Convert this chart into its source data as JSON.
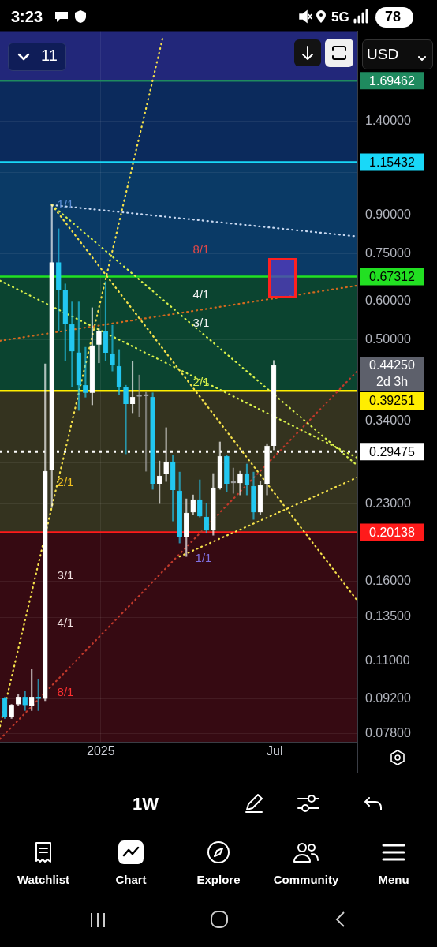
{
  "chart_data": {
    "type": "candlestick",
    "x": [
      "2024-09-23",
      "2024-09-30",
      "2024-10-07",
      "2024-10-14",
      "2024-10-21",
      "2024-10-28",
      "2024-11-04",
      "2024-11-11",
      "2024-11-18",
      "2024-11-25",
      "2024-12-02",
      "2024-12-09",
      "2024-12-16",
      "2024-12-23",
      "2024-12-30",
      "2025-01-06",
      "2025-01-13",
      "2025-01-20",
      "2025-01-27",
      "2025-02-03",
      "2025-02-10",
      "2025-02-17",
      "2025-02-24",
      "2025-03-03",
      "2025-03-10",
      "2025-03-17",
      "2025-03-24",
      "2025-03-31",
      "2025-04-07",
      "2025-04-14",
      "2025-04-21",
      "2025-04-28",
      "2025-05-05",
      "2025-05-12",
      "2025-05-19",
      "2025-05-26",
      "2025-06-02",
      "2025-06-09",
      "2025-06-16",
      "2025-06-23",
      "2025-06-30"
    ],
    "ohlc": [
      [
        0.0919,
        0.0925,
        0.0837,
        0.0844
      ],
      [
        0.0844,
        0.0895,
        0.0837,
        0.0892
      ],
      [
        0.0895,
        0.094,
        0.0889,
        0.0926
      ],
      [
        0.0926,
        0.0954,
        0.0869,
        0.0892
      ],
      [
        0.0889,
        0.1055,
        0.0869,
        0.0926
      ],
      [
        0.0926,
        0.1009,
        0.0869,
        0.0919
      ],
      [
        0.0919,
        0.446,
        0.091,
        0.2687
      ],
      [
        0.2708,
        0.943,
        0.2264,
        0.719
      ],
      [
        0.719,
        0.843,
        0.52,
        0.633
      ],
      [
        0.631,
        0.65,
        0.453,
        0.539
      ],
      [
        0.537,
        0.597,
        0.4,
        0.473
      ],
      [
        0.47,
        0.597,
        0.358,
        0.403
      ],
      [
        0.403,
        0.482,
        0.381,
        0.389
      ],
      [
        0.389,
        0.581,
        0.3675,
        0.486
      ],
      [
        0.488,
        0.526,
        0.448,
        0.52
      ],
      [
        0.52,
        0.657,
        0.453,
        0.47
      ],
      [
        0.468,
        0.535,
        0.431,
        0.4427
      ],
      [
        0.441,
        0.477,
        0.386,
        0.4
      ],
      [
        0.399,
        0.403,
        0.2917,
        0.369
      ],
      [
        0.369,
        0.451,
        0.354,
        0.381
      ],
      [
        0.382,
        0.423,
        0.3475,
        0.383
      ],
      [
        0.384,
        0.39,
        0.2687,
        0.383
      ],
      [
        0.381,
        0.389,
        0.2467,
        0.2532
      ],
      [
        0.2532,
        0.282,
        0.2307,
        0.2628
      ],
      [
        0.2648,
        0.33,
        0.256,
        0.281
      ],
      [
        0.281,
        0.2895,
        0.2125,
        0.2458
      ],
      [
        0.2449,
        0.2677,
        0.1915,
        0.1973
      ],
      [
        0.1973,
        0.2359,
        0.1797,
        0.2206
      ],
      [
        0.2214,
        0.2403,
        0.219,
        0.235
      ],
      [
        0.235,
        0.258,
        0.2165,
        0.2173
      ],
      [
        0.2165,
        0.2307,
        0.201,
        0.2032
      ],
      [
        0.204,
        0.2658,
        0.1987,
        0.2486
      ],
      [
        0.2486,
        0.3085,
        0.2467,
        0.2885
      ],
      [
        0.2885,
        0.2895,
        0.2439,
        0.2532
      ],
      [
        0.2545,
        0.2728,
        0.2421,
        0.2541
      ],
      [
        0.2541,
        0.2687,
        0.2403,
        0.2658
      ],
      [
        0.2658,
        0.278,
        0.2403,
        0.2513
      ],
      [
        0.2504,
        0.2677,
        0.2141,
        0.2214
      ],
      [
        0.2214,
        0.256,
        0.219,
        0.2513
      ],
      [
        0.2532,
        0.306,
        0.2403,
        0.3028
      ],
      [
        0.3028,
        0.453,
        0.2972,
        0.4425
      ]
    ],
    "colors": [
      "#22c7f0",
      "#ffffff",
      "#ffffff",
      "#22c7f0",
      "#ffffff",
      "#22c7f0",
      "#ffffff",
      "#ffffff",
      "#22c7f0",
      "#22c7f0",
      "#22c7f0",
      "#22c7f0",
      "#22c7f0",
      "#ffffff",
      "#ffffff",
      "#22c7f0",
      "#22c7f0",
      "#22c7f0",
      "#22c7f0",
      "#ffffff",
      "#9e9e9e",
      "#9e9e9e",
      "#22c7f0",
      "#ffffff",
      "#ffffff",
      "#22c7f0",
      "#22c7f0",
      "#ffffff",
      "#ffffff",
      "#22c7f0",
      "#22c7f0",
      "#ffffff",
      "#ffffff",
      "#22c7f0",
      "#9e9e9e",
      "#ffffff",
      "#22c7f0",
      "#22c7f0",
      "#ffffff",
      "#ffffff",
      "#ffffff"
    ],
    "series": [
      {
        "type": "line",
        "x": [
          "2024-11-11",
          "2025-09-25"
        ],
        "values": [
          0.943,
          0.146
        ],
        "color": "#f5e14a",
        "line_style": "dotted"
      },
      {
        "type": "line",
        "x": [
          "2024-11-11",
          "2025-09-25"
        ],
        "values": [
          0.943,
          0.276
        ],
        "color": "#d8f04a",
        "line_style": "dotted"
      },
      {
        "type": "line",
        "x": [
          "2024-11-11",
          "2025-09-25"
        ],
        "values": [
          0.943,
          0.813
        ],
        "color": "#c8d8f0",
        "line_style": "dotted"
      },
      {
        "type": "line",
        "x": [
          "2025-03-24",
          "2025-09-25"
        ],
        "values": [
          0.1797,
          0.261
        ],
        "color": "#f5e14a",
        "line_style": "dotted"
      },
      {
        "type": "line",
        "x": [
          "2024-09-18",
          "2025-09-25"
        ],
        "values": [
          0.497,
          0.645
        ],
        "color": "#d2691e",
        "line_style": "dotted"
      },
      {
        "type": "line",
        "x": [
          "2024-09-18",
          "2025-03-07"
        ],
        "values": [
          0.0807,
          2.1
        ],
        "color": "#f5e14a",
        "line_style": "dotted"
      },
      {
        "type": "line",
        "x": [
          "2024-09-18",
          "2025-09-25"
        ],
        "values": [
          0.076,
          0.431
        ],
        "color": "#c0392b",
        "line_style": "dotted"
      },
      {
        "type": "line",
        "x": [
          "2024-09-18",
          "2025-09-25"
        ],
        "values": [
          0.66,
          0.2863
        ],
        "color": "#d8f04a",
        "line_style": "dotted"
      }
    ],
    "xlim": [
      "2024-09-18",
      "2025-09-25"
    ],
    "xticks": [
      {
        "value": "2025-01-01",
        "label": "2025"
      },
      {
        "value": "2025-07-01",
        "label": "Jul"
      }
    ],
    "log": "y",
    "ylim": [
      0.075,
      2.14
    ],
    "yticks": [
      {
        "value": 1.4,
        "label": "1.40000"
      },
      {
        "value": 1.1,
        "label": null
      },
      {
        "value": 0.9,
        "label": "0.90000"
      },
      {
        "value": 0.75,
        "label": "0.75000"
      },
      {
        "value": 0.6,
        "label": "0.60000"
      },
      {
        "value": 0.5,
        "label": "0.50000"
      },
      {
        "value": 0.34,
        "label": "0.34000"
      },
      {
        "value": 0.28,
        "label": null
      },
      {
        "value": 0.23,
        "label": "0.23000"
      },
      {
        "value": 0.19,
        "label": null
      },
      {
        "value": 0.16,
        "label": "0.16000"
      },
      {
        "value": 0.135,
        "label": "0.13500"
      },
      {
        "value": 0.11,
        "label": "0.11000"
      },
      {
        "value": 0.092,
        "label": "0.09200"
      },
      {
        "value": 0.078,
        "label": "0.07800"
      }
    ],
    "grid": true,
    "bands": [
      {
        "axis": "y",
        "from": 1.69462,
        "to": 2.14,
        "color": "#22277a"
      },
      {
        "axis": "y",
        "from": 1.15432,
        "to": 1.69462,
        "color": "#0b2a5c"
      },
      {
        "axis": "y",
        "from": 0.67312,
        "to": 1.15432,
        "color": "#0a3a66"
      },
      {
        "axis": "y",
        "from": 0.39251,
        "to": 0.67312,
        "color": "#0b4430"
      },
      {
        "axis": "y",
        "from": 0.20138,
        "to": 0.39251,
        "color": "#34331f"
      },
      {
        "axis": "y",
        "from": 0.075,
        "to": 0.20138,
        "color": "#360a12"
      }
    ],
    "ref_lines": [
      {
        "axis": "y",
        "value": 1.69462,
        "label": "1.69462",
        "color": "#1f8a5f",
        "line_style": "solid"
      },
      {
        "axis": "y",
        "value": 1.15432,
        "label": "1.15432",
        "color": "#19d8f8",
        "line_style": "solid"
      },
      {
        "axis": "y",
        "value": 0.67312,
        "label": "0.67312",
        "color": "#22e022",
        "line_style": "solid"
      },
      {
        "axis": "y",
        "value": 0.39251,
        "label": "0.39251",
        "color": "#ffee00",
        "line_style": "solid"
      },
      {
        "axis": "y",
        "value": 0.29475,
        "label": "0.29475",
        "color": "#ffffff",
        "line_style": "dotted"
      },
      {
        "axis": "y",
        "value": 0.20138,
        "label": "0.20138",
        "color": "#ff1a1a",
        "line_style": "solid"
      }
    ],
    "annotations": [
      "1/1",
      "8/1",
      "4/1",
      "3/1",
      "2/1",
      "1/1",
      "2/1",
      "3/1",
      "4/1",
      "8/1",
      "0.44250",
      "2d 3h",
      "3:23",
      "5G",
      "78",
      "11",
      "USD",
      "1W",
      "Watchlist",
      "Chart",
      "Explore",
      "Community",
      "Menu"
    ]
  }
}
